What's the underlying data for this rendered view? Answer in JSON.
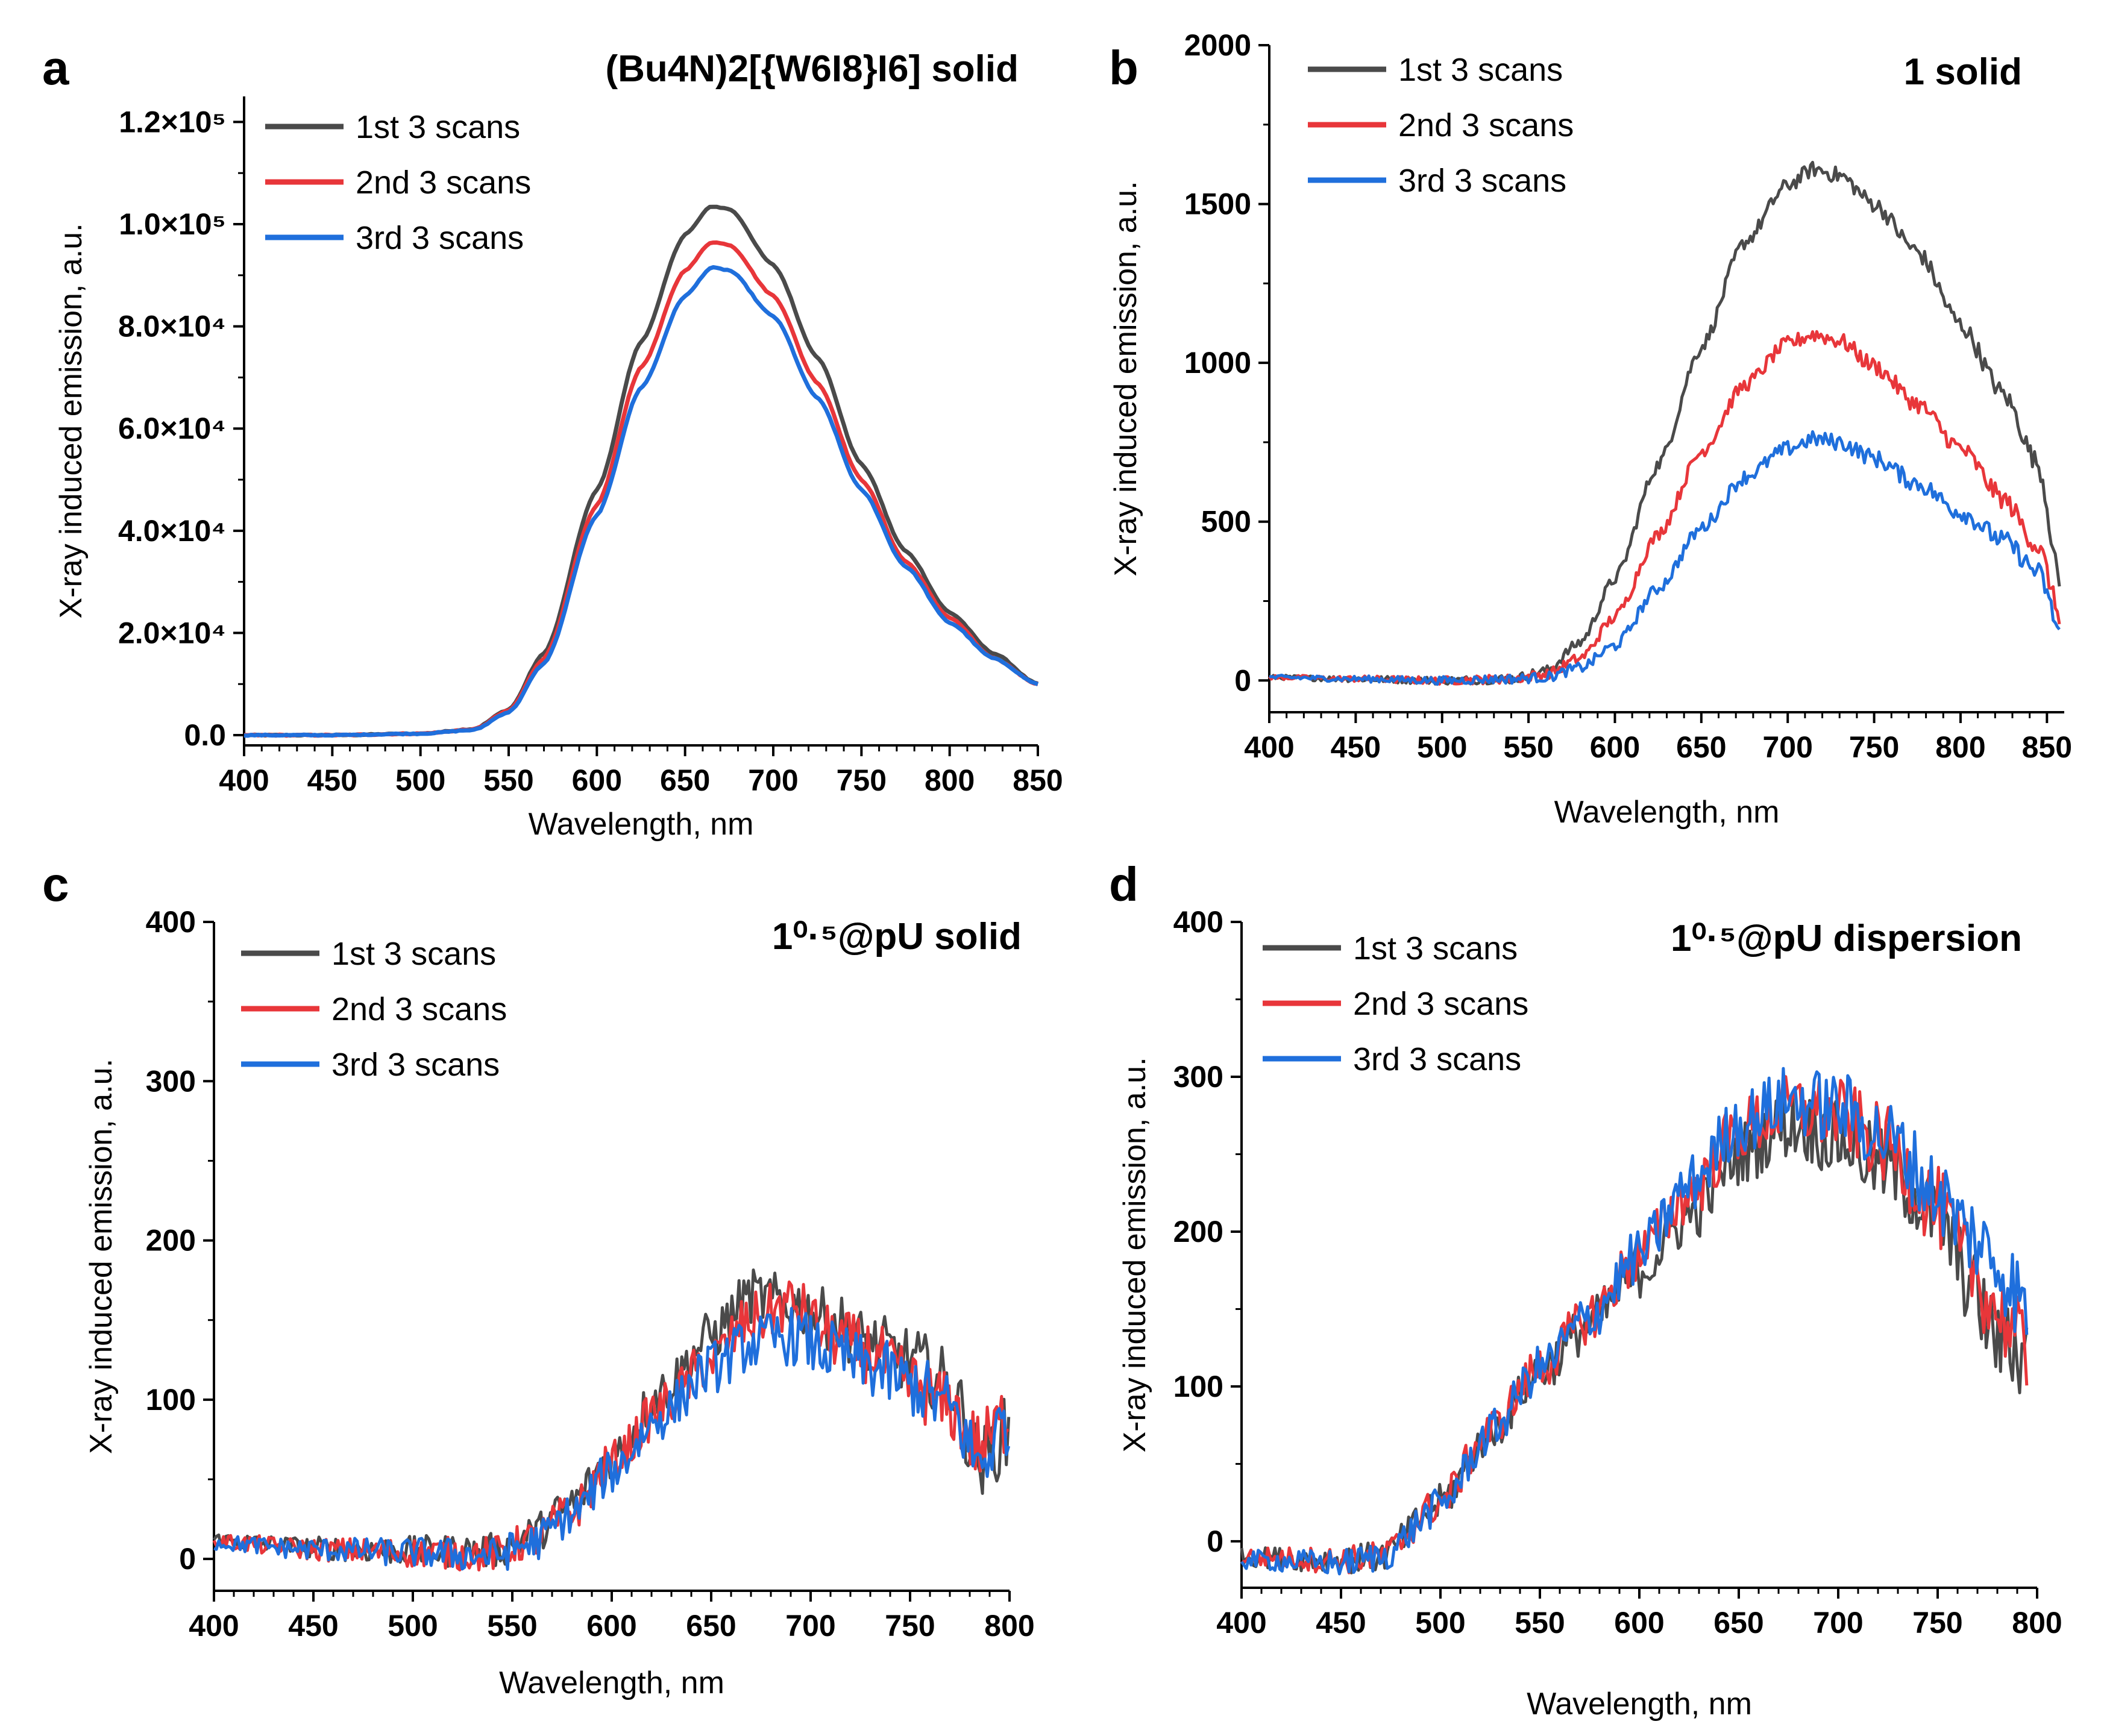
{
  "figure": {
    "series_names": [
      "1st 3 scans",
      "2nd 3 scans",
      "3rd 3 scans"
    ],
    "colors": [
      "#4a4a4a",
      "#e8363a",
      "#1f6fdc"
    ]
  },
  "chart_data": [
    {
      "panel": "a",
      "type": "line",
      "title": "(Bu4N)2[{W6I8}I6] solid",
      "xlabel": "Wavelength, nm",
      "ylabel": "X-ray induced emission, a.u.",
      "xlim": [
        400,
        850
      ],
      "ylim": [
        -2000,
        125000
      ],
      "xticks": [
        "400",
        "450",
        "500",
        "550",
        "600",
        "650",
        "700",
        "750",
        "800",
        "850"
      ],
      "yticks": [
        "0.0",
        "2.0×10⁴",
        "4.0×10⁴",
        "6.0×10⁴",
        "8.0×10⁴",
        "1.0×10⁵",
        "1.2×10⁵"
      ],
      "ytick_values": [
        0,
        20000,
        40000,
        60000,
        80000,
        100000,
        120000
      ],
      "x": [
        400,
        450,
        500,
        530,
        550,
        570,
        600,
        625,
        650,
        665,
        675,
        700,
        725,
        750,
        775,
        800,
        825,
        850
      ],
      "series": [
        {
          "name": "1st 3 scans",
          "values": [
            0,
            0,
            300,
            1200,
            5000,
            16000,
            48000,
            77000,
            98000,
            103500,
            103000,
            92000,
            74000,
            53000,
            36000,
            24000,
            16000,
            10000
          ]
        },
        {
          "name": "2nd 3 scans",
          "values": [
            0,
            0,
            300,
            1100,
            4800,
            15000,
            45000,
            72000,
            91000,
            96500,
            96000,
            86000,
            69000,
            50000,
            34000,
            23000,
            15000,
            10000
          ]
        },
        {
          "name": "3rd 3 scans",
          "values": [
            0,
            0,
            300,
            1000,
            4500,
            14000,
            43000,
            68000,
            86000,
            91500,
            91000,
            82000,
            66000,
            48000,
            33000,
            22000,
            15000,
            10000
          ]
        }
      ]
    },
    {
      "panel": "b",
      "type": "line",
      "title": "1 solid",
      "xlabel": "Wavelength, nm",
      "ylabel": "X-ray induced emission, a.u.",
      "xlim": [
        400,
        860
      ],
      "ylim": [
        -100,
        2000
      ],
      "xticks": [
        "400",
        "450",
        "500",
        "550",
        "600",
        "650",
        "700",
        "750",
        "800",
        "850"
      ],
      "yticks": [
        "0",
        "500",
        "1000",
        "1500",
        "2000"
      ],
      "ytick_values": [
        0,
        500,
        1000,
        1500,
        2000
      ],
      "x": [
        400,
        450,
        500,
        540,
        560,
        580,
        600,
        625,
        650,
        675,
        700,
        715,
        730,
        750,
        775,
        800,
        825,
        845,
        858
      ],
      "series": [
        {
          "name": "1st 3 scans",
          "values": [
            10,
            5,
            0,
            5,
            30,
            120,
            320,
            680,
            1050,
            1380,
            1560,
            1610,
            1590,
            1500,
            1350,
            1120,
            900,
            680,
            300
          ]
        },
        {
          "name": "2nd 3 scans",
          "values": [
            10,
            5,
            0,
            5,
            20,
            70,
            200,
            460,
            720,
            930,
            1060,
            1090,
            1070,
            990,
            870,
            730,
            570,
            420,
            200
          ]
        },
        {
          "name": "3rd 3 scans",
          "values": [
            10,
            5,
            0,
            5,
            10,
            40,
            110,
            290,
            480,
            640,
            730,
            760,
            750,
            700,
            620,
            530,
            440,
            340,
            150
          ]
        }
      ]
    },
    {
      "panel": "c",
      "type": "line",
      "title": "1⁰·⁵@pU solid",
      "xlabel": "Wavelength, nm",
      "ylabel": "X-ray induced emission, a.u.",
      "xlim": [
        400,
        800
      ],
      "ylim": [
        -20,
        400
      ],
      "xticks": [
        "400",
        "450",
        "500",
        "550",
        "600",
        "650",
        "700",
        "750",
        "800"
      ],
      "yticks": [
        "0",
        "100",
        "200",
        "300",
        "400"
      ],
      "ytick_values": [
        0,
        100,
        200,
        300,
        400
      ],
      "x": [
        400,
        450,
        500,
        540,
        560,
        580,
        600,
        625,
        650,
        670,
        690,
        710,
        730,
        750,
        770,
        785,
        800
      ],
      "series": [
        {
          "name": "1st 3 scans",
          "values": [
            12,
            7,
            5,
            5,
            15,
            35,
            65,
            105,
            140,
            165,
            160,
            150,
            135,
            125,
            110,
            60,
            80
          ]
        },
        {
          "name": "2nd 3 scans",
          "values": [
            11,
            6,
            4,
            3,
            12,
            30,
            60,
            95,
            125,
            150,
            160,
            140,
            130,
            110,
            95,
            70,
            90
          ]
        },
        {
          "name": "3rd 3 scans",
          "values": [
            10,
            6,
            4,
            2,
            10,
            28,
            55,
            90,
            120,
            135,
            140,
            130,
            120,
            110,
            95,
            60,
            90
          ]
        }
      ]
    },
    {
      "panel": "d",
      "type": "line",
      "title": "1⁰·⁵@pU dispersion",
      "xlabel": "Wavelength, nm",
      "ylabel": "X-ray induced emission, a.u.",
      "xlim": [
        400,
        800
      ],
      "ylim": [
        -30,
        400
      ],
      "xticks": [
        "400",
        "450",
        "500",
        "550",
        "600",
        "650",
        "700",
        "750",
        "800"
      ],
      "yticks": [
        "0",
        "100",
        "200",
        "300",
        "400"
      ],
      "ytick_values": [
        0,
        100,
        200,
        300,
        400
      ],
      "x": [
        400,
        450,
        470,
        500,
        525,
        550,
        575,
        600,
        625,
        650,
        675,
        700,
        725,
        750,
        765,
        780,
        795
      ],
      "series": [
        {
          "name": "1st 3 scans",
          "values": [
            -10,
            -12,
            -10,
            25,
            70,
            110,
            140,
            175,
            210,
            250,
            270,
            260,
            240,
            210,
            170,
            130,
            120
          ]
        },
        {
          "name": "2nd 3 scans",
          "values": [
            -10,
            -12,
            -10,
            25,
            72,
            112,
            145,
            185,
            225,
            265,
            280,
            275,
            255,
            215,
            180,
            150,
            120
          ]
        },
        {
          "name": "3rd 3 scans",
          "values": [
            -12,
            -14,
            -10,
            23,
            70,
            112,
            145,
            185,
            230,
            270,
            285,
            280,
            260,
            225,
            200,
            180,
            150
          ]
        }
      ]
    }
  ]
}
